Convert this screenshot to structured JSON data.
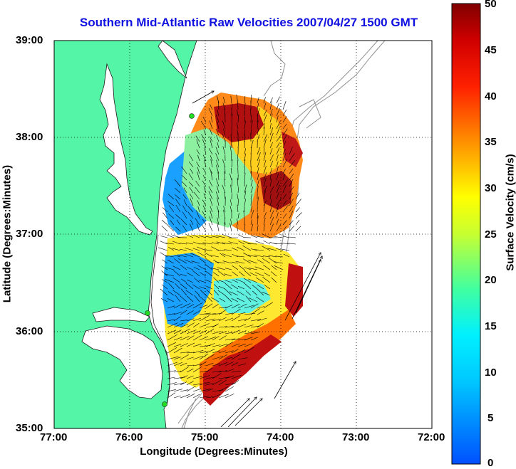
{
  "title": "Southern Mid-Atlantic Raw Velocities 2007/04/27 1500 GMT",
  "xlabel": "Longitude (Degrees:Minutes)",
  "ylabel": "Latitude (Degrees:Minutes)",
  "colorbar": {
    "label": "Surface Velocity (cm/s)",
    "ticks": [
      "0",
      "5",
      "10",
      "15",
      "20",
      "25",
      "30",
      "35",
      "40",
      "45",
      "50"
    ],
    "range": [
      0,
      50
    ]
  },
  "chart_data": {
    "type": "heatmap",
    "title": "Southern Mid-Atlantic Raw Velocities 2007/04/27 1500 GMT",
    "xlabel": "Longitude (Degrees:Minutes)",
    "ylabel": "Latitude (Degrees:Minutes)",
    "x_ticks": [
      "77:00",
      "76:00",
      "75:00",
      "74:00",
      "73:00",
      "72:00"
    ],
    "y_ticks": [
      "39:00",
      "38:00",
      "37:00",
      "36:00",
      "35:00"
    ],
    "xlim": [
      -77,
      -72
    ],
    "ylim": [
      35,
      39
    ],
    "grid": true,
    "colorbar_range": [
      0,
      50
    ],
    "colorbar_label": "Surface Velocity (cm/s)"
  },
  "colors": {
    "land": "#55f5a8",
    "coast": "#1a1a1a",
    "bathymetry": "#909090",
    "title": "#1010e0",
    "station": "#22dd22"
  }
}
